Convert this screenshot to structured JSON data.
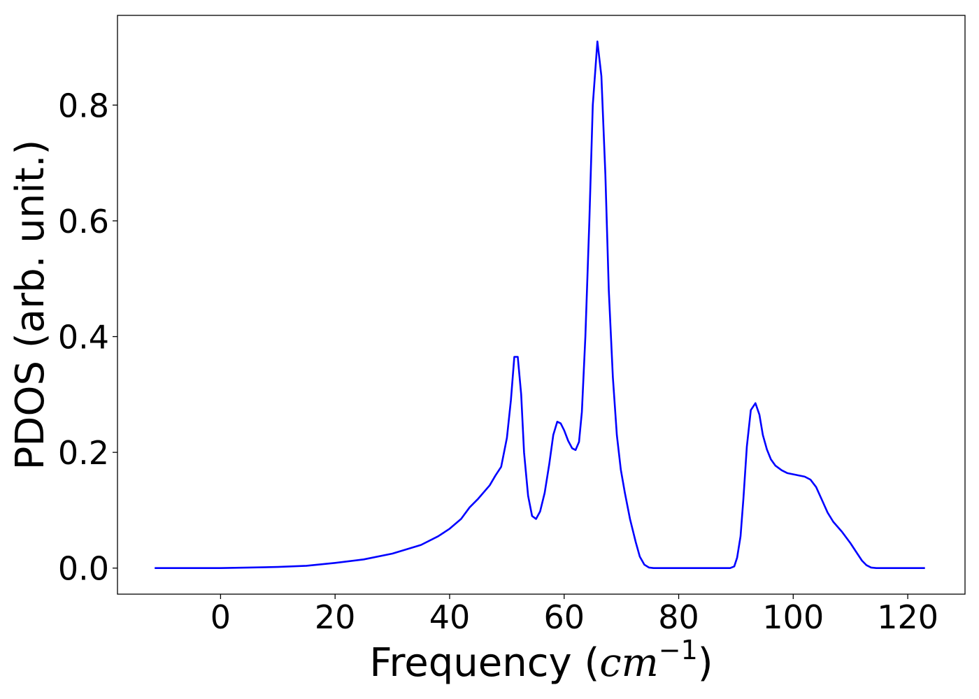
{
  "chart_data": {
    "type": "line",
    "title": "",
    "xlabel": "Frequency (",
    "xlabel_math": "cm",
    "xlabel_math_sup": "−1",
    "xlabel_close": ")",
    "ylabel": "PDOS (arb. unit.)",
    "xlim": [
      -18,
      130
    ],
    "ylim": [
      -0.045,
      0.955
    ],
    "xticks": [
      0,
      20,
      40,
      60,
      80,
      100,
      120
    ],
    "xtick_labels": [
      "0",
      "20",
      "40",
      "60",
      "80",
      "100",
      "120"
    ],
    "yticks": [
      0.0,
      0.2,
      0.4,
      0.6,
      0.8
    ],
    "ytick_labels": [
      "0.0",
      "0.2",
      "0.4",
      "0.6",
      "0.8"
    ],
    "grid": false,
    "series": [
      {
        "color": "#0000ff",
        "x": [
          -11.5,
          0,
          5,
          10,
          15,
          20,
          25,
          30,
          35,
          38,
          40,
          42,
          43.5,
          45,
          47,
          48,
          49,
          50,
          50.7,
          51.3,
          51.9,
          52.5,
          53,
          53.7,
          54.4,
          55.1,
          55.8,
          56.6,
          57.4,
          58.1,
          58.8,
          59.4,
          60,
          60.7,
          61.4,
          62,
          62.6,
          63.1,
          63.7,
          64.4,
          65,
          65.8,
          66.5,
          67.2,
          67.8,
          68.5,
          69.2,
          69.9,
          70.6,
          71.5,
          72.5,
          73.2,
          74,
          74.8,
          75.6,
          77,
          80,
          85,
          89,
          89.7,
          90.2,
          90.8,
          91.3,
          91.9,
          92.6,
          93.4,
          94.1,
          94.7,
          95.4,
          96.1,
          96.9,
          98,
          99,
          100.5,
          102,
          103,
          104,
          105,
          106,
          107,
          108.5,
          110,
          111,
          112,
          112.8,
          113.6,
          114.5,
          116,
          123
        ],
        "values": [
          0.0,
          0.0,
          0.001,
          0.002,
          0.004,
          0.009,
          0.015,
          0.025,
          0.04,
          0.055,
          0.068,
          0.085,
          0.105,
          0.12,
          0.143,
          0.16,
          0.175,
          0.225,
          0.29,
          0.365,
          0.365,
          0.3,
          0.2,
          0.125,
          0.09,
          0.085,
          0.098,
          0.13,
          0.18,
          0.23,
          0.253,
          0.25,
          0.238,
          0.22,
          0.207,
          0.204,
          0.218,
          0.27,
          0.4,
          0.6,
          0.8,
          0.91,
          0.85,
          0.68,
          0.48,
          0.33,
          0.23,
          0.17,
          0.13,
          0.085,
          0.045,
          0.02,
          0.006,
          0.001,
          0.0,
          0.0,
          0.0,
          0.0,
          0.0,
          0.003,
          0.018,
          0.055,
          0.12,
          0.21,
          0.273,
          0.285,
          0.265,
          0.23,
          0.205,
          0.188,
          0.177,
          0.169,
          0.164,
          0.161,
          0.158,
          0.153,
          0.14,
          0.118,
          0.096,
          0.08,
          0.063,
          0.043,
          0.028,
          0.013,
          0.005,
          0.001,
          0.0,
          0.0,
          0.0
        ]
      }
    ]
  }
}
